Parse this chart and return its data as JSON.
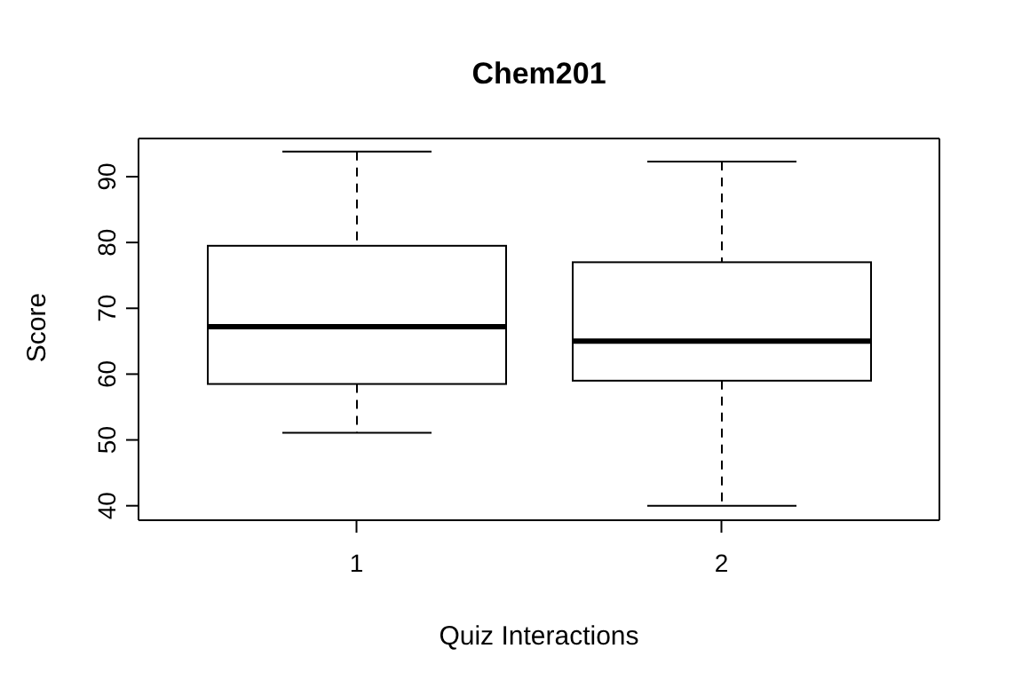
{
  "chart_data": {
    "type": "box",
    "title": "Chem201",
    "xlabel": "Quiz Interactions",
    "ylabel": "Score",
    "categories": [
      "1",
      "2"
    ],
    "boxes": [
      {
        "low": 51.1,
        "q1": 58.5,
        "median": 67.2,
        "q3": 79.5,
        "high": 93.8
      },
      {
        "low": 40.0,
        "q1": 59.0,
        "median": 65.0,
        "q3": 77.0,
        "high": 92.3
      }
    ],
    "ylim": [
      37.8,
      95.8
    ],
    "yticks": [
      40,
      50,
      60,
      70,
      80,
      90
    ],
    "grid": false,
    "legend": false
  }
}
